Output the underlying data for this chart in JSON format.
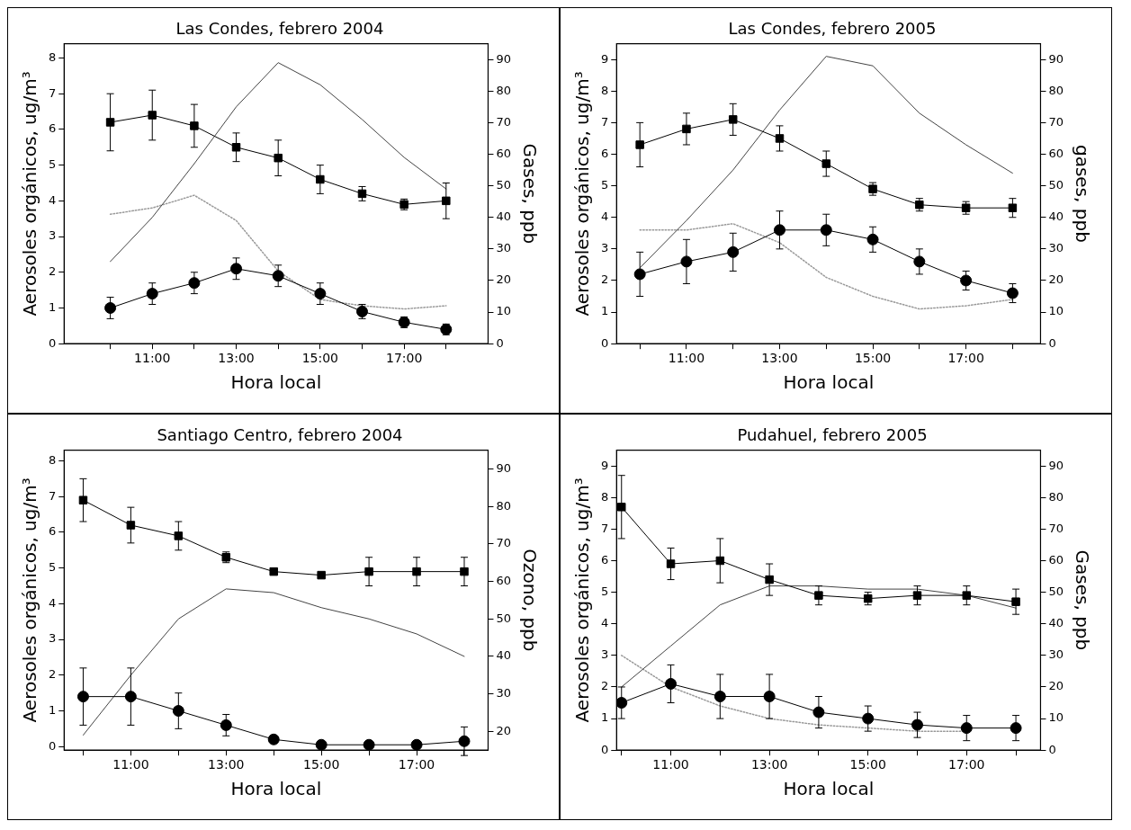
{
  "chart_data": [
    {
      "type": "line",
      "title": "Las Condes, febrero 2004",
      "xlabel": "Hora local",
      "ylabel": "Aerosoles orgánicos, ug/m³",
      "y2label": "Gases, ppb",
      "grid": false,
      "legend": false,
      "x": [
        10,
        11,
        12,
        13,
        14,
        15,
        16,
        17,
        18
      ],
      "xlim": [
        8.9,
        19
      ],
      "xticks": [
        {
          "value": 10,
          "label": null
        },
        {
          "value": 11,
          "label": "11:00"
        },
        {
          "value": 12,
          "label": null
        },
        {
          "value": 13,
          "label": "13:00"
        },
        {
          "value": 14,
          "label": null
        },
        {
          "value": 15,
          "label": "15:00"
        },
        {
          "value": 16,
          "label": null
        },
        {
          "value": 17,
          "label": "17:00"
        },
        {
          "value": 18,
          "label": null
        }
      ],
      "ylim": [
        0,
        8.4
      ],
      "yticks": [
        0,
        1,
        2,
        3,
        4,
        5,
        6,
        7,
        8
      ],
      "y2lim": [
        0,
        95
      ],
      "y2ticks": [
        0,
        10,
        20,
        30,
        40,
        50,
        60,
        70,
        80,
        90
      ],
      "series": [
        {
          "color": "#000000",
          "marker": "square",
          "line_style": "solid",
          "values": [
            6.2,
            6.4,
            6.1,
            5.5,
            5.2,
            4.6,
            4.2,
            3.9,
            4.0
          ],
          "errors": [
            0.8,
            0.7,
            0.6,
            0.4,
            0.5,
            0.4,
            0.2,
            0.15,
            0.5
          ]
        },
        {
          "color": "#000000",
          "marker": "circle",
          "line_style": "solid",
          "values": [
            1.0,
            1.4,
            1.7,
            2.1,
            1.9,
            1.4,
            0.9,
            0.6,
            0.4
          ],
          "errors": [
            0.3,
            0.3,
            0.3,
            0.3,
            0.3,
            0.3,
            0.2,
            0.15,
            0.15
          ]
        },
        {
          "color": "#444444",
          "marker": "none",
          "line_style": "solid",
          "axis": "y2",
          "values": [
            26,
            40,
            57,
            75,
            89,
            82,
            71,
            59,
            49
          ]
        },
        {
          "color": "#999999",
          "marker": "none",
          "line_style": "dotted",
          "axis": "y2",
          "values": [
            41,
            43,
            47,
            39,
            23,
            14,
            12,
            11,
            12
          ]
        }
      ]
    },
    {
      "type": "line",
      "title": "Las Condes, febrero 2005",
      "xlabel": "Hora local",
      "ylabel": "Aerosoles orgánicos, ug/m³",
      "y2label": "gases, ppb",
      "grid": false,
      "legend": false,
      "x": [
        10,
        11,
        12,
        13,
        14,
        15,
        16,
        17,
        18
      ],
      "xlim": [
        9.5,
        18.6
      ],
      "xticks": [
        {
          "value": 10,
          "label": null
        },
        {
          "value": 11,
          "label": "11:00"
        },
        {
          "value": 12,
          "label": null
        },
        {
          "value": 13,
          "label": "13:00"
        },
        {
          "value": 14,
          "label": null
        },
        {
          "value": 15,
          "label": "15:00"
        },
        {
          "value": 16,
          "label": null
        },
        {
          "value": 17,
          "label": "17:00"
        },
        {
          "value": 18,
          "label": null
        }
      ],
      "ylim": [
        0,
        9.5
      ],
      "yticks": [
        0,
        1,
        2,
        3,
        4,
        5,
        6,
        7,
        8,
        9
      ],
      "y2lim": [
        0,
        95
      ],
      "y2ticks": [
        0,
        10,
        20,
        30,
        40,
        50,
        60,
        70,
        80,
        90
      ],
      "series": [
        {
          "color": "#000000",
          "marker": "square",
          "line_style": "solid",
          "values": [
            6.3,
            6.8,
            7.1,
            6.5,
            5.7,
            4.9,
            4.4,
            4.3,
            4.3
          ],
          "errors": [
            0.7,
            0.5,
            0.5,
            0.4,
            0.4,
            0.2,
            0.2,
            0.2,
            0.3
          ]
        },
        {
          "color": "#000000",
          "marker": "circle",
          "line_style": "solid",
          "values": [
            2.2,
            2.6,
            2.9,
            3.6,
            3.6,
            3.3,
            2.6,
            2.0,
            1.6
          ],
          "errors": [
            0.7,
            0.7,
            0.6,
            0.6,
            0.5,
            0.4,
            0.4,
            0.3,
            0.3
          ]
        },
        {
          "color": "#444444",
          "marker": "none",
          "line_style": "solid",
          "axis": "y2",
          "values": [
            24,
            39,
            55,
            74,
            91,
            88,
            73,
            63,
            54
          ]
        },
        {
          "color": "#999999",
          "marker": "none",
          "line_style": "dotted",
          "axis": "y2",
          "values": [
            36,
            36,
            38,
            32,
            21,
            15,
            11,
            12,
            14
          ]
        }
      ]
    },
    {
      "type": "line",
      "title": "Santiago Centro, febrero 2004",
      "xlabel": "Hora local",
      "ylabel": "Aerosoles orgánicos, ug/m³",
      "y2label": "Ozono, ppb",
      "grid": false,
      "legend": false,
      "x": [
        10,
        11,
        12,
        13,
        14,
        15,
        16,
        17,
        18
      ],
      "xlim": [
        9.6,
        18.5
      ],
      "xticks": [
        {
          "value": 10,
          "label": null
        },
        {
          "value": 11,
          "label": "11:00"
        },
        {
          "value": 12,
          "label": null
        },
        {
          "value": 13,
          "label": "13:00"
        },
        {
          "value": 14,
          "label": null
        },
        {
          "value": 15,
          "label": "15:00"
        },
        {
          "value": 16,
          "label": null
        },
        {
          "value": 17,
          "label": "17:00"
        },
        {
          "value": 18,
          "label": null
        }
      ],
      "ylim": [
        -0.1,
        8.3
      ],
      "yticks": [
        0,
        1,
        2,
        3,
        4,
        5,
        6,
        7,
        8
      ],
      "y2lim": [
        15,
        95
      ],
      "y2ticks": [
        20,
        30,
        40,
        50,
        60,
        70,
        80,
        90
      ],
      "series": [
        {
          "color": "#000000",
          "marker": "square",
          "line_style": "solid",
          "values": [
            6.9,
            6.2,
            5.9,
            5.3,
            4.9,
            4.8,
            4.9,
            4.9,
            4.9
          ],
          "errors": [
            0.6,
            0.5,
            0.4,
            0.15,
            null,
            null,
            0.4,
            0.4,
            0.4
          ]
        },
        {
          "color": "#000000",
          "marker": "circle",
          "line_style": "solid",
          "values": [
            1.4,
            1.4,
            1.0,
            0.6,
            0.2,
            0.05,
            0.05,
            0.05,
            0.15
          ],
          "errors": [
            0.8,
            0.8,
            0.5,
            0.3,
            0.1,
            null,
            null,
            null,
            0.4
          ]
        },
        {
          "color": "#444444",
          "marker": "none",
          "line_style": "solid",
          "axis": "y2",
          "values": [
            19,
            35,
            50,
            58,
            57,
            53,
            50,
            46,
            40
          ]
        }
      ]
    },
    {
      "type": "line",
      "title": "Pudahuel, febrero 2005",
      "xlabel": "Hora local",
      "ylabel": "Aerosoles orgánicos, ug/m³",
      "y2label": "Gases, ppb",
      "grid": false,
      "legend": false,
      "x": [
        10,
        11,
        12,
        13,
        14,
        15,
        16,
        17,
        18
      ],
      "xlim": [
        9.9,
        18.5
      ],
      "xticks": [
        {
          "value": 10,
          "label": null
        },
        {
          "value": 11,
          "label": "11:00"
        },
        {
          "value": 12,
          "label": null
        },
        {
          "value": 13,
          "label": "13:00"
        },
        {
          "value": 14,
          "label": null
        },
        {
          "value": 15,
          "label": "15:00"
        },
        {
          "value": 16,
          "label": null
        },
        {
          "value": 17,
          "label": "17:00"
        },
        {
          "value": 18,
          "label": null
        }
      ],
      "ylim": [
        0,
        9.5
      ],
      "yticks": [
        0,
        1,
        2,
        3,
        4,
        5,
        6,
        7,
        8,
        9
      ],
      "y2lim": [
        0,
        95
      ],
      "y2ticks": [
        0,
        10,
        20,
        30,
        40,
        50,
        60,
        70,
        80,
        90
      ],
      "series": [
        {
          "color": "#000000",
          "marker": "square",
          "line_style": "solid",
          "values": [
            7.7,
            5.9,
            6.0,
            5.4,
            4.9,
            4.8,
            4.9,
            4.9,
            4.7
          ],
          "errors": [
            1.0,
            0.5,
            0.7,
            0.5,
            0.3,
            0.2,
            0.3,
            0.3,
            0.4
          ]
        },
        {
          "color": "#000000",
          "marker": "circle",
          "line_style": "solid",
          "values": [
            1.5,
            2.1,
            1.7,
            1.7,
            1.2,
            1.0,
            0.8,
            0.7,
            0.7
          ],
          "errors": [
            0.5,
            0.6,
            0.7,
            0.7,
            0.5,
            0.4,
            0.4,
            0.4,
            0.4
          ]
        },
        {
          "color": "#444444",
          "marker": "none",
          "line_style": "solid",
          "axis": "y2",
          "values": [
            20,
            33,
            46,
            52,
            52,
            51,
            51,
            49,
            45
          ]
        },
        {
          "color": "#999999",
          "marker": "none",
          "line_style": "dotted",
          "axis": "y2",
          "values": [
            30,
            20,
            14,
            10,
            8,
            7,
            6,
            6,
            null
          ]
        }
      ]
    }
  ]
}
